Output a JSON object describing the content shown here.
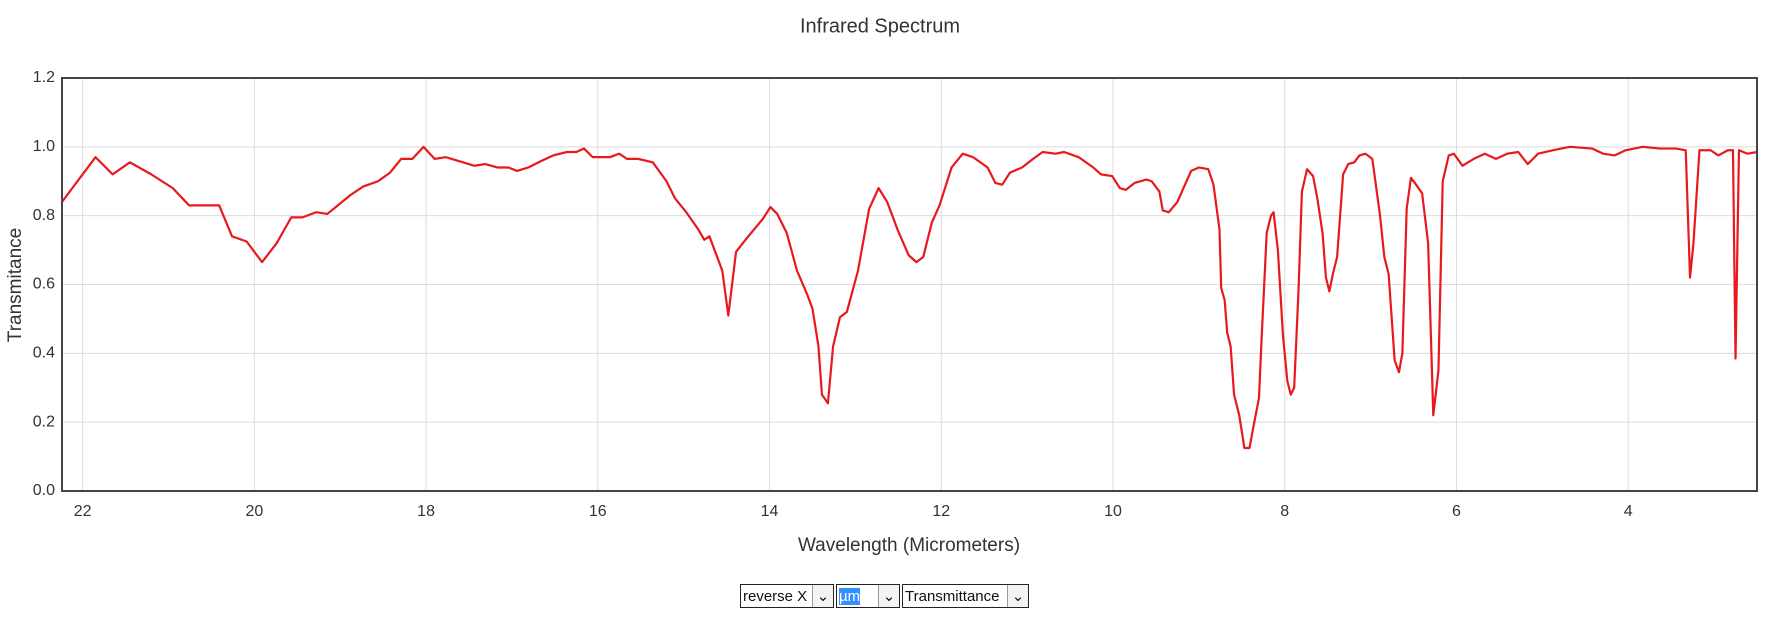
{
  "chart_data": {
    "type": "line",
    "title": "Infrared Spectrum",
    "xlabel": "Wavelength (Micrometers)",
    "ylabel": "Transmitance",
    "color": "#e8191c",
    "xlim": [
      22.24,
      2.5
    ],
    "xticks": [
      22,
      20,
      18,
      16,
      14,
      12,
      10,
      8,
      6,
      4
    ],
    "ylim": [
      0,
      1.2
    ],
    "yticks": [
      {
        "value": 0,
        "label": "0.0"
      },
      0.2,
      0.4,
      0.6,
      0.8,
      {
        "value": 1,
        "label": "1.0"
      },
      1.2
    ],
    "grid": true,
    "x": [
      22.24,
      21.85,
      21.65,
      21.45,
      21.2,
      20.95,
      20.76,
      20.41,
      20.26,
      20.09,
      19.91,
      19.74,
      19.57,
      19.44,
      19.28,
      19.15,
      18.88,
      18.73,
      18.56,
      18.42,
      18.29,
      18.16,
      18.03,
      17.9,
      17.77,
      17.57,
      17.44,
      17.31,
      17.17,
      17.04,
      16.94,
      16.81,
      16.65,
      16.52,
      16.36,
      16.25,
      16.16,
      16.06,
      15.86,
      15.75,
      15.66,
      15.53,
      15.36,
      15.2,
      15.1,
      14.97,
      14.83,
      14.76,
      14.7,
      14.55,
      14.48,
      14.39,
      14.28,
      14.18,
      14.08,
      13.99,
      13.91,
      13.8,
      13.68,
      13.56,
      13.5,
      13.43,
      13.39,
      13.32,
      13.26,
      13.18,
      13.1,
      12.97,
      12.84,
      12.73,
      12.63,
      12.51,
      12.38,
      12.29,
      12.21,
      12.11,
      12.02,
      11.88,
      11.75,
      11.63,
      11.46,
      11.37,
      11.29,
      11.2,
      11.06,
      10.93,
      10.82,
      10.67,
      10.57,
      10.4,
      10.23,
      10.14,
      10.01,
      9.92,
      9.85,
      9.75,
      9.61,
      9.55,
      9.46,
      9.42,
      9.35,
      9.25,
      9.18,
      9.09,
      9.0,
      8.89,
      8.83,
      8.76,
      8.74,
      8.7,
      8.67,
      8.63,
      8.59,
      8.53,
      8.47,
      8.41,
      8.37,
      8.3,
      8.27,
      8.21,
      8.16,
      8.13,
      8.08,
      8.02,
      7.97,
      7.93,
      7.89,
      7.84,
      7.8,
      7.74,
      7.67,
      7.62,
      7.56,
      7.52,
      7.48,
      7.44,
      7.39,
      7.32,
      7.26,
      7.19,
      7.13,
      7.06,
      6.98,
      6.89,
      6.84,
      6.79,
      6.72,
      6.67,
      6.63,
      6.58,
      6.53,
      6.47,
      6.4,
      6.33,
      6.27,
      6.21,
      6.16,
      6.09,
      6.03,
      5.93,
      5.8,
      5.67,
      5.54,
      5.41,
      5.28,
      5.17,
      5.05,
      4.88,
      4.68,
      4.42,
      4.29,
      4.16,
      4.03,
      3.83,
      3.63,
      3.44,
      3.33,
      3.28,
      3.24,
      3.17,
      3.04,
      2.95,
      2.84,
      2.78,
      2.75,
      2.71,
      2.61,
      2.5
    ],
    "values": [
      0.84,
      0.97,
      0.92,
      0.955,
      0.92,
      0.88,
      0.83,
      0.83,
      0.74,
      0.725,
      0.665,
      0.72,
      0.795,
      0.795,
      0.81,
      0.805,
      0.86,
      0.885,
      0.9,
      0.925,
      0.965,
      0.965,
      1.0,
      0.965,
      0.97,
      0.955,
      0.945,
      0.95,
      0.94,
      0.94,
      0.93,
      0.94,
      0.96,
      0.975,
      0.985,
      0.985,
      0.995,
      0.97,
      0.97,
      0.98,
      0.965,
      0.965,
      0.955,
      0.9,
      0.85,
      0.81,
      0.76,
      0.73,
      0.74,
      0.64,
      0.51,
      0.695,
      0.73,
      0.76,
      0.79,
      0.825,
      0.805,
      0.75,
      0.64,
      0.57,
      0.53,
      0.42,
      0.28,
      0.255,
      0.42,
      0.505,
      0.52,
      0.64,
      0.82,
      0.88,
      0.84,
      0.76,
      0.685,
      0.665,
      0.68,
      0.78,
      0.83,
      0.94,
      0.98,
      0.97,
      0.94,
      0.895,
      0.89,
      0.925,
      0.94,
      0.965,
      0.985,
      0.98,
      0.985,
      0.97,
      0.94,
      0.92,
      0.915,
      0.88,
      0.875,
      0.895,
      0.905,
      0.9,
      0.87,
      0.815,
      0.81,
      0.84,
      0.88,
      0.93,
      0.94,
      0.935,
      0.89,
      0.76,
      0.59,
      0.555,
      0.46,
      0.42,
      0.28,
      0.22,
      0.125,
      0.125,
      0.18,
      0.27,
      0.44,
      0.75,
      0.8,
      0.81,
      0.7,
      0.45,
      0.32,
      0.28,
      0.3,
      0.58,
      0.87,
      0.935,
      0.915,
      0.85,
      0.75,
      0.62,
      0.58,
      0.63,
      0.68,
      0.92,
      0.95,
      0.955,
      0.975,
      0.98,
      0.965,
      0.8,
      0.68,
      0.63,
      0.38,
      0.345,
      0.4,
      0.82,
      0.91,
      0.89,
      0.865,
      0.72,
      0.22,
      0.35,
      0.9,
      0.975,
      0.98,
      0.945,
      0.965,
      0.98,
      0.965,
      0.98,
      0.985,
      0.95,
      0.98,
      0.99,
      1.0,
      0.995,
      0.98,
      0.975,
      0.99,
      1.0,
      0.995,
      0.995,
      0.99,
      0.62,
      0.72,
      0.99,
      0.99,
      0.975,
      0.99,
      0.99,
      0.385,
      0.99,
      0.98,
      0.985
    ]
  },
  "controls": [
    "reverse X",
    "µm",
    "Transmittance"
  ]
}
